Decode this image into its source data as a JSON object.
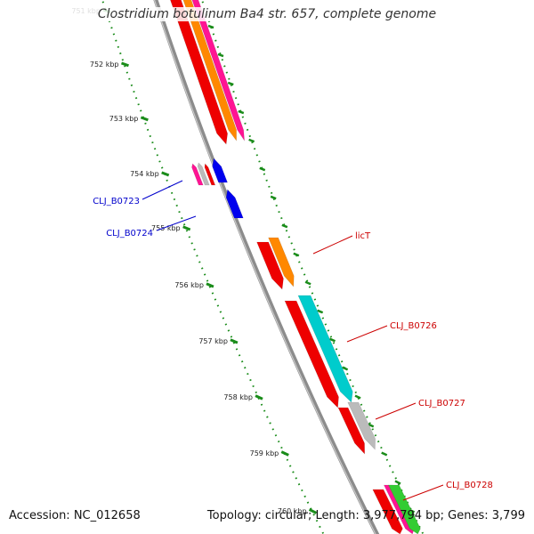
{
  "title": "Clostridium botulinum Ba4 str. 657, complete genome",
  "accession_text": "Accession: NC_012658",
  "topology_text": "Topology: circular; Length: 3,977,794 bp; Genes: 3,799",
  "ticks": [
    {
      "label": "751 kbp"
    },
    {
      "label": "752 kbp"
    },
    {
      "label": "753 kbp"
    },
    {
      "label": "754 kbp"
    },
    {
      "label": "755 kbp"
    },
    {
      "label": "756 kbp"
    },
    {
      "label": "757 kbp"
    },
    {
      "label": "758 kbp"
    },
    {
      "label": "759 kbp"
    },
    {
      "label": "760 kbp"
    }
  ],
  "gene_labels": [
    {
      "text": "CLJ_B0723",
      "color": "#0000cc"
    },
    {
      "text": "CLJ_B0724",
      "color": "#0000cc"
    },
    {
      "text": "licT",
      "color": "#cc0000"
    },
    {
      "text": "CLJ_B0726",
      "color": "#cc0000"
    },
    {
      "text": "CLJ_B0727",
      "color": "#cc0000"
    },
    {
      "text": "CLJ_B0728",
      "color": "#cc0000"
    }
  ],
  "colors": {
    "backbone": "#8c8c8c",
    "tick_green": "#1a8c1a",
    "red": "#ee0000",
    "orange": "#ff8800",
    "pink": "#ff1493",
    "blue": "#0000ee",
    "cyan": "#00cccc",
    "gray": "#bbbbbb",
    "green": "#33cc33"
  }
}
